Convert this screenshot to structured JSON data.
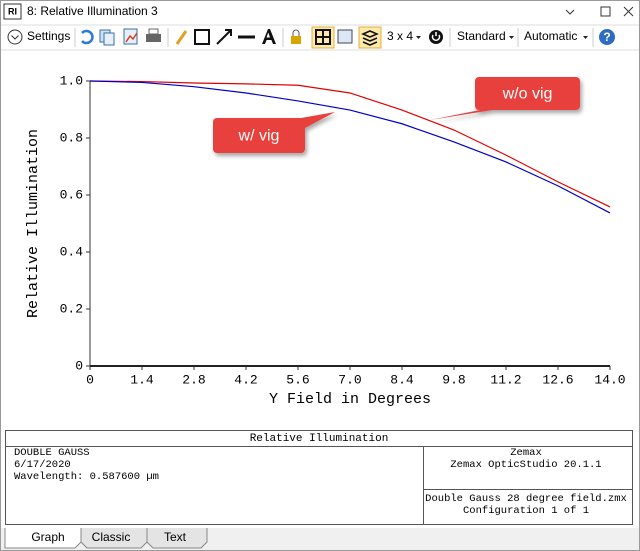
{
  "window": {
    "app_icon": "RI",
    "title": "8: Relative Illumination 3"
  },
  "toolbar": {
    "settings": "Settings",
    "layout": "3 x 4",
    "style": "Standard",
    "scale": "Automatic",
    "help": "?"
  },
  "chart_data": {
    "type": "line",
    "x": [
      0,
      1.4,
      2.8,
      4.2,
      5.6,
      7.0,
      8.4,
      9.8,
      11.2,
      12.6,
      14.0
    ],
    "series": [
      {
        "name": "w/o vig",
        "color": "#e00000",
        "values": [
          1.0,
          0.998,
          0.993,
          0.99,
          0.985,
          0.958,
          0.898,
          0.828,
          0.74,
          0.646,
          0.558
        ]
      },
      {
        "name": "w/ vig",
        "color": "#0000c8",
        "values": [
          1.0,
          0.995,
          0.98,
          0.958,
          0.93,
          0.898,
          0.85,
          0.786,
          0.716,
          0.632,
          0.537
        ]
      }
    ],
    "xlim": [
      0,
      14
    ],
    "ylim": [
      0,
      1
    ],
    "xticks": [
      0,
      1.4,
      2.8,
      4.2,
      5.6,
      {
        "value": 7,
        "label": "7.0"
      },
      8.4,
      9.8,
      11.2,
      12.6,
      {
        "value": 14,
        "label": "14.0"
      }
    ],
    "yticks": [
      0,
      0.2,
      0.4,
      0.6,
      0.8,
      {
        "value": 1,
        "label": "1.0"
      }
    ],
    "xlabel": "Y Field in Degrees",
    "ylabel": "Relative Illumination"
  },
  "info": {
    "header": "Relative Illumination",
    "left": [
      "DOUBLE GAUSS",
      "6/17/2020",
      "Wavelength: 0.587600 µm"
    ],
    "right": [
      "Zemax",
      "Zemax OpticStudio 20.1.1"
    ],
    "file": [
      "Double Gauss 28 degree field.zmx",
      "Configuration 1 of 1"
    ]
  },
  "tabs": [
    "Graph",
    "Classic",
    "Text"
  ]
}
